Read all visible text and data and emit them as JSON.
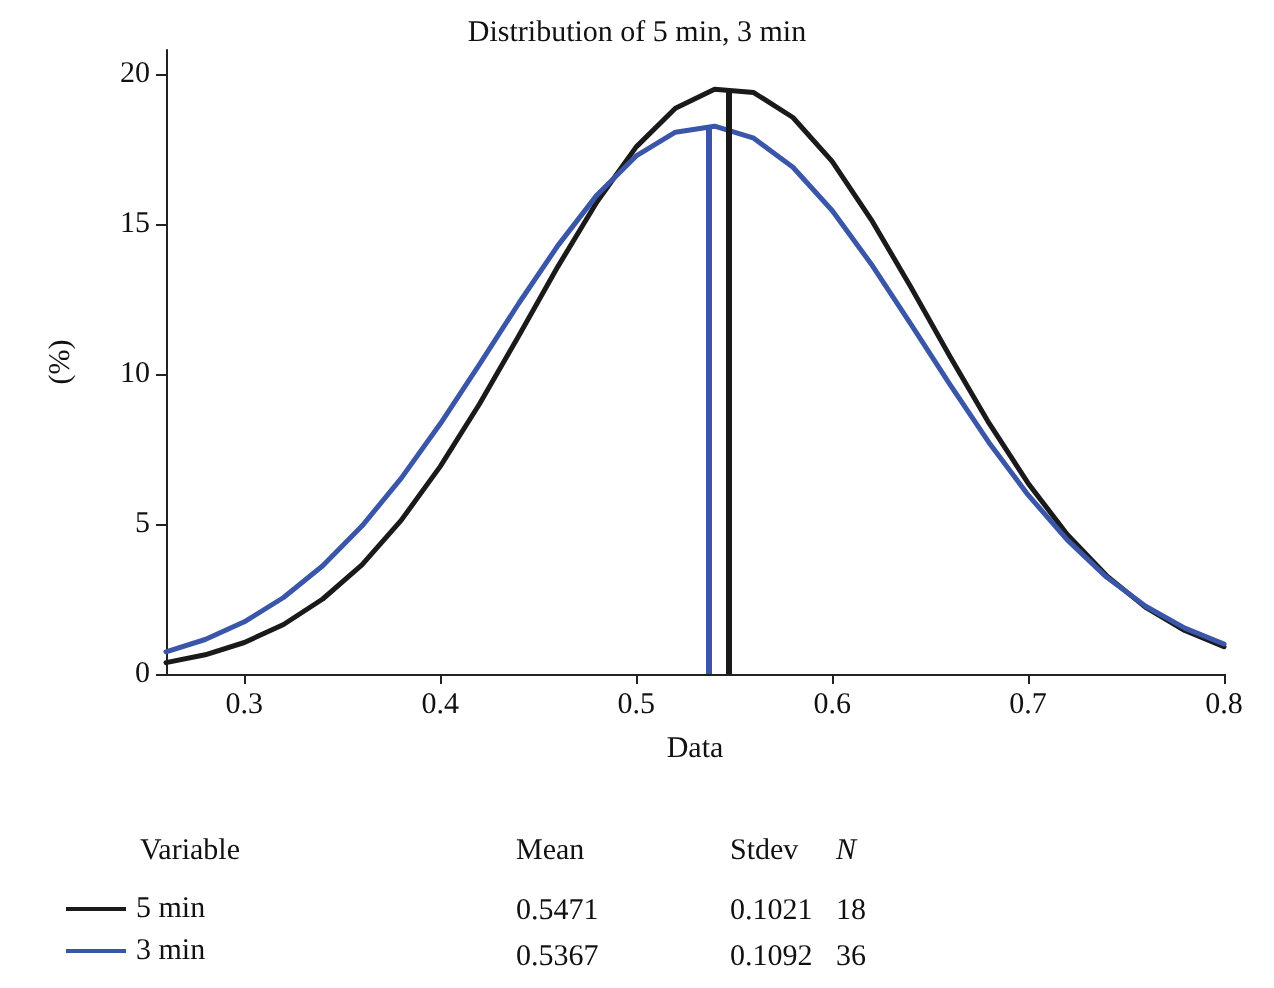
{
  "chart_data": {
    "type": "line",
    "title": "Distribution of 5 min, 3 min",
    "xlabel": "Data",
    "ylabel": "(%)",
    "x": [
      0.26,
      0.28,
      0.3,
      0.32,
      0.34,
      0.36,
      0.38,
      0.4,
      0.42,
      0.44,
      0.46,
      0.48,
      0.5,
      0.52,
      0.54,
      0.56,
      0.58,
      0.6,
      0.62,
      0.64,
      0.66,
      0.68,
      0.7,
      0.72,
      0.74,
      0.76,
      0.78,
      0.8
    ],
    "series": [
      {
        "name": "5 min",
        "color": "#1a1a1a",
        "values": [
          0.38,
          0.64,
          1.05,
          1.65,
          2.5,
          3.64,
          5.12,
          6.92,
          9.0,
          11.27,
          13.58,
          15.74,
          17.57,
          18.86,
          19.49,
          19.38,
          18.55,
          17.09,
          15.14,
          12.92,
          10.6,
          8.37,
          6.36,
          4.65,
          3.28,
          2.22,
          1.45,
          0.91
        ]
      },
      {
        "name": "3 min",
        "color": "#3a56a8",
        "values": [
          0.74,
          1.15,
          1.74,
          2.55,
          3.61,
          4.93,
          6.52,
          8.34,
          10.32,
          12.35,
          14.28,
          15.97,
          17.27,
          18.06,
          18.26,
          17.86,
          16.89,
          15.45,
          13.66,
          11.68,
          9.66,
          7.72,
          5.97,
          4.47,
          3.23,
          2.26,
          1.53,
          1.0
        ]
      }
    ],
    "xlim": [
      0.26,
      0.8
    ],
    "xticks": [
      0.3,
      0.4,
      0.5,
      0.6,
      0.7,
      0.8
    ],
    "ylim": [
      0,
      20.8
    ],
    "yticks": [
      0,
      5,
      10,
      15,
      20
    ],
    "ref_lines": [
      {
        "axis": "x",
        "value": 0.5471,
        "color": "#1a1a1a"
      },
      {
        "axis": "x",
        "value": 0.5367,
        "color": "#3a56a8"
      }
    ],
    "annotations": [
      "Variable",
      "Mean",
      "Stdev",
      "N",
      "0.5471",
      "0.1021",
      "18",
      "0.5367",
      "0.1092",
      "36"
    ],
    "legend": "bottom left",
    "grid": false,
    "marker": "none",
    "line_style": "solid"
  }
}
